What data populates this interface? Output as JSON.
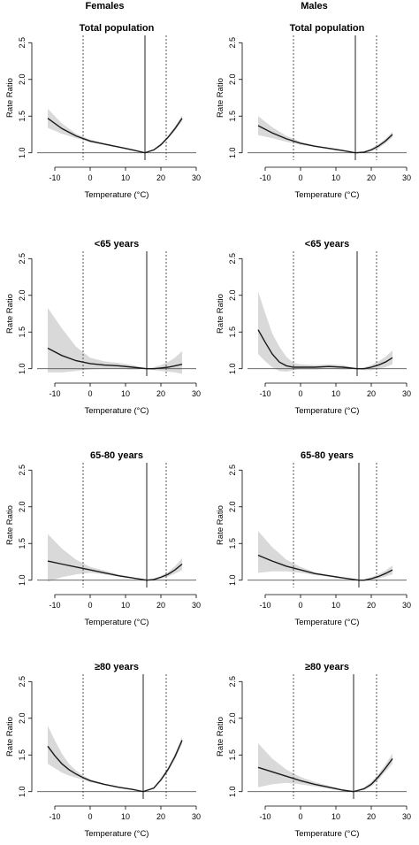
{
  "columns": [
    "Females",
    "Males"
  ],
  "chart_data": [
    {
      "type": "line",
      "column": "Females",
      "title": "Total population",
      "xlabel": "Temperature (°C)",
      "ylabel": "Rate Ratio",
      "xlim": [
        -15,
        30
      ],
      "ylim": [
        0.9,
        2.6
      ],
      "xticks": [
        -10,
        0,
        10,
        20,
        30
      ],
      "yticks": [
        1.0,
        1.5,
        2.0,
        2.5
      ],
      "x": [
        -12,
        -8,
        -4,
        0,
        4,
        8,
        12,
        15.5,
        18,
        20,
        22,
        24,
        26
      ],
      "y": [
        1.47,
        1.33,
        1.23,
        1.16,
        1.12,
        1.08,
        1.04,
        1.0,
        1.04,
        1.11,
        1.21,
        1.33,
        1.47
      ],
      "ci_upper": [
        1.6,
        1.4,
        1.26,
        1.18,
        1.13,
        1.09,
        1.05,
        1.0,
        1.05,
        1.13,
        1.23,
        1.36,
        1.51
      ],
      "ci_lower": [
        1.34,
        1.26,
        1.2,
        1.14,
        1.11,
        1.07,
        1.03,
        1.0,
        1.03,
        1.09,
        1.19,
        1.3,
        1.43
      ],
      "reference_line": 1.0,
      "mmt": 15.5,
      "cut_low": -2,
      "cut_high": 21.5
    },
    {
      "type": "line",
      "column": "Males",
      "title": "Total population",
      "xlabel": "Temperature (°C)",
      "ylabel": "Rate Ratio",
      "xlim": [
        -15,
        30
      ],
      "ylim": [
        0.9,
        2.6
      ],
      "xticks": [
        -10,
        0,
        10,
        20,
        30
      ],
      "yticks": [
        1.0,
        1.5,
        2.0,
        2.5
      ],
      "x": [
        -12,
        -8,
        -4,
        0,
        4,
        8,
        12,
        15.5,
        18,
        20,
        22,
        24,
        26
      ],
      "y": [
        1.37,
        1.27,
        1.19,
        1.13,
        1.09,
        1.06,
        1.03,
        1.0,
        1.01,
        1.04,
        1.09,
        1.16,
        1.25
      ],
      "ci_upper": [
        1.5,
        1.35,
        1.23,
        1.15,
        1.1,
        1.07,
        1.04,
        1.0,
        1.02,
        1.06,
        1.12,
        1.19,
        1.29
      ],
      "ci_lower": [
        1.24,
        1.2,
        1.15,
        1.11,
        1.08,
        1.05,
        1.02,
        1.0,
        1.0,
        1.02,
        1.06,
        1.13,
        1.21
      ],
      "reference_line": 1.0,
      "mmt": 15.5,
      "cut_low": -2,
      "cut_high": 21.5
    },
    {
      "type": "line",
      "column": "Females",
      "title": "<65 years",
      "xlabel": "Temperature (°C)",
      "ylabel": "Rate Ratio",
      "xlim": [
        -15,
        30
      ],
      "ylim": [
        0.9,
        2.6
      ],
      "xticks": [
        -10,
        0,
        10,
        20,
        30
      ],
      "yticks": [
        1.0,
        1.5,
        2.0,
        2.5
      ],
      "x": [
        -12,
        -8,
        -4,
        0,
        4,
        8,
        12,
        16,
        18,
        20,
        22,
        24,
        26
      ],
      "y": [
        1.28,
        1.18,
        1.11,
        1.07,
        1.05,
        1.04,
        1.02,
        1.0,
        1.0,
        1.01,
        1.02,
        1.04,
        1.06
      ],
      "ci_upper": [
        1.83,
        1.55,
        1.3,
        1.15,
        1.1,
        1.08,
        1.05,
        1.0,
        1.02,
        1.05,
        1.09,
        1.15,
        1.24
      ],
      "ci_lower": [
        0.95,
        0.95,
        0.97,
        0.99,
        1.0,
        1.0,
        0.99,
        1.0,
        0.98,
        0.97,
        0.96,
        0.95,
        0.93
      ],
      "reference_line": 1.0,
      "mmt": 16,
      "cut_low": -2,
      "cut_high": 21.5
    },
    {
      "type": "line",
      "column": "Males",
      "title": "<65 years",
      "xlabel": "Temperature (°C)",
      "ylabel": "Rate Ratio",
      "xlim": [
        -15,
        30
      ],
      "ylim": [
        0.9,
        2.6
      ],
      "xticks": [
        -10,
        0,
        10,
        20,
        30
      ],
      "yticks": [
        1.0,
        1.5,
        2.0,
        2.5
      ],
      "x": [
        -12,
        -10,
        -8,
        -6,
        -4,
        -2,
        0,
        4,
        8,
        12,
        16,
        18,
        20,
        22,
        24,
        26
      ],
      "y": [
        1.53,
        1.36,
        1.2,
        1.09,
        1.04,
        1.02,
        1.02,
        1.02,
        1.03,
        1.02,
        1.0,
        1.0,
        1.02,
        1.05,
        1.09,
        1.15
      ],
      "ci_upper": [
        2.05,
        1.76,
        1.48,
        1.3,
        1.16,
        1.08,
        1.06,
        1.05,
        1.06,
        1.05,
        1.0,
        1.02,
        1.05,
        1.1,
        1.16,
        1.25
      ],
      "ci_lower": [
        1.2,
        1.1,
        1.02,
        0.97,
        0.96,
        0.98,
        0.99,
        0.99,
        1.0,
        0.99,
        1.0,
        0.98,
        0.98,
        1.0,
        1.02,
        1.06
      ],
      "reference_line": 1.0,
      "mmt": 16,
      "cut_low": -2,
      "cut_high": 21.5
    },
    {
      "type": "line",
      "column": "Females",
      "title": "65-80 years",
      "xlabel": "Temperature (°C)",
      "ylabel": "Rate Ratio",
      "xlim": [
        -15,
        30
      ],
      "ylim": [
        0.9,
        2.6
      ],
      "xticks": [
        -10,
        0,
        10,
        20,
        30
      ],
      "yticks": [
        1.0,
        1.5,
        2.0,
        2.5
      ],
      "x": [
        -12,
        -8,
        -4,
        0,
        4,
        8,
        12,
        16,
        18,
        20,
        22,
        24,
        26
      ],
      "y": [
        1.26,
        1.22,
        1.18,
        1.14,
        1.1,
        1.06,
        1.03,
        1.0,
        1.01,
        1.04,
        1.08,
        1.14,
        1.22
      ],
      "ci_upper": [
        1.63,
        1.43,
        1.28,
        1.18,
        1.13,
        1.08,
        1.04,
        1.0,
        1.02,
        1.06,
        1.11,
        1.19,
        1.3
      ],
      "ci_lower": [
        0.98,
        1.04,
        1.08,
        1.1,
        1.08,
        1.05,
        1.02,
        1.0,
        1.0,
        1.02,
        1.05,
        1.09,
        1.14
      ],
      "reference_line": 1.0,
      "mmt": 16,
      "cut_low": -2,
      "cut_high": 21.5
    },
    {
      "type": "line",
      "column": "Males",
      "title": "65-80 years",
      "xlabel": "Temperature (°C)",
      "ylabel": "Rate Ratio",
      "xlim": [
        -15,
        30
      ],
      "ylim": [
        0.9,
        2.6
      ],
      "xticks": [
        -10,
        0,
        10,
        20,
        30
      ],
      "yticks": [
        1.0,
        1.5,
        2.0,
        2.5
      ],
      "x": [
        -12,
        -8,
        -4,
        0,
        4,
        8,
        12,
        16.5,
        18,
        20,
        22,
        24,
        26
      ],
      "y": [
        1.34,
        1.26,
        1.19,
        1.14,
        1.09,
        1.06,
        1.03,
        1.0,
        1.0,
        1.02,
        1.05,
        1.09,
        1.14
      ],
      "ci_upper": [
        1.67,
        1.45,
        1.28,
        1.18,
        1.11,
        1.07,
        1.04,
        1.0,
        1.01,
        1.04,
        1.08,
        1.13,
        1.2
      ],
      "ci_lower": [
        1.1,
        1.12,
        1.12,
        1.1,
        1.07,
        1.05,
        1.02,
        1.0,
        0.99,
        1.0,
        1.02,
        1.05,
        1.08
      ],
      "reference_line": 1.0,
      "mmt": 16.5,
      "cut_low": -2,
      "cut_high": 21.5
    },
    {
      "type": "line",
      "column": "Females",
      "title": "≥80 years",
      "xlabel": "Temperature (°C)",
      "ylabel": "Rate Ratio",
      "xlim": [
        -15,
        30
      ],
      "ylim": [
        0.9,
        2.6
      ],
      "xticks": [
        -10,
        0,
        10,
        20,
        30
      ],
      "yticks": [
        1.0,
        1.5,
        2.0,
        2.5
      ],
      "x": [
        -12,
        -10,
        -8,
        -6,
        -4,
        -2,
        0,
        4,
        8,
        12,
        15,
        18,
        20,
        22,
        24,
        26
      ],
      "y": [
        1.62,
        1.49,
        1.38,
        1.3,
        1.24,
        1.19,
        1.15,
        1.1,
        1.06,
        1.03,
        1.0,
        1.05,
        1.16,
        1.3,
        1.48,
        1.7
      ],
      "ci_upper": [
        1.9,
        1.7,
        1.52,
        1.38,
        1.29,
        1.22,
        1.17,
        1.11,
        1.07,
        1.04,
        1.0,
        1.06,
        1.18,
        1.33,
        1.52,
        1.75
      ],
      "ci_lower": [
        1.38,
        1.32,
        1.26,
        1.22,
        1.19,
        1.16,
        1.13,
        1.09,
        1.05,
        1.02,
        1.0,
        1.04,
        1.14,
        1.27,
        1.44,
        1.65
      ],
      "reference_line": 1.0,
      "mmt": 15,
      "cut_low": -2,
      "cut_high": 21.5
    },
    {
      "type": "line",
      "column": "Males",
      "title": "≥80 years",
      "xlabel": "Temperature (°C)",
      "ylabel": "Rate Ratio",
      "xlim": [
        -15,
        30
      ],
      "ylim": [
        0.9,
        2.6
      ],
      "xticks": [
        -10,
        0,
        10,
        20,
        30
      ],
      "yticks": [
        1.0,
        1.5,
        2.0,
        2.5
      ],
      "x": [
        -12,
        -8,
        -4,
        0,
        4,
        8,
        12,
        15,
        18,
        20,
        22,
        24,
        26
      ],
      "y": [
        1.33,
        1.27,
        1.21,
        1.15,
        1.1,
        1.06,
        1.02,
        1.0,
        1.04,
        1.1,
        1.2,
        1.32,
        1.45
      ],
      "ci_upper": [
        1.66,
        1.45,
        1.3,
        1.2,
        1.13,
        1.08,
        1.03,
        1.0,
        1.06,
        1.13,
        1.24,
        1.37,
        1.52
      ],
      "ci_lower": [
        1.06,
        1.1,
        1.12,
        1.1,
        1.07,
        1.04,
        1.01,
        1.0,
        1.02,
        1.07,
        1.16,
        1.27,
        1.38
      ],
      "reference_line": 1.0,
      "mmt": 15,
      "cut_low": -2,
      "cut_high": 21.5
    }
  ]
}
